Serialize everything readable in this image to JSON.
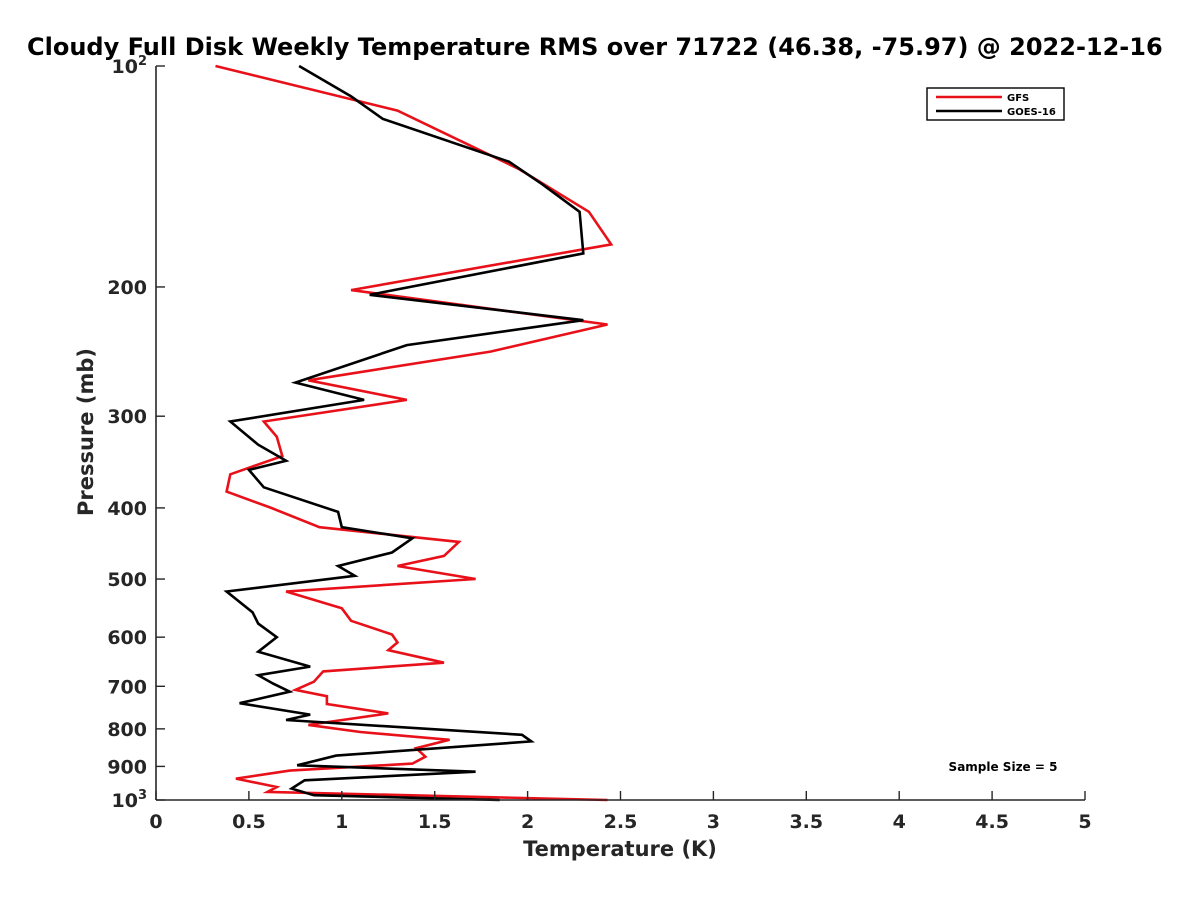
{
  "chart_data": {
    "type": "line",
    "title": "Cloudy Full Disk Weekly Temperature RMS over 71722 (46.38, -75.97) @ 2022-12-16",
    "xlabel": "Temperature (K)",
    "ylabel": "Pressure (mb)",
    "xlim": [
      0,
      5
    ],
    "ylim": [
      100,
      1000
    ],
    "yscale": "log",
    "y_reversed": true,
    "grid": false,
    "legend_position": "top-right",
    "x_ticks": [
      {
        "value": 0,
        "label": "0"
      },
      {
        "value": 0.5,
        "label": "0.5"
      },
      {
        "value": 1,
        "label": "1"
      },
      {
        "value": 1.5,
        "label": "1.5"
      },
      {
        "value": 2,
        "label": "2"
      },
      {
        "value": 2.5,
        "label": "2.5"
      },
      {
        "value": 3,
        "label": "3"
      },
      {
        "value": 3.5,
        "label": "3.5"
      },
      {
        "value": 4,
        "label": "4"
      },
      {
        "value": 4.5,
        "label": "4.5"
      },
      {
        "value": 5,
        "label": "5"
      }
    ],
    "y_ticks": [
      {
        "value": 100,
        "base": "10",
        "exp": "2"
      },
      {
        "value": 200,
        "base": "200",
        "exp": ""
      },
      {
        "value": 300,
        "base": "300",
        "exp": ""
      },
      {
        "value": 400,
        "base": "400",
        "exp": ""
      },
      {
        "value": 500,
        "base": "500",
        "exp": ""
      },
      {
        "value": 600,
        "base": "600",
        "exp": ""
      },
      {
        "value": 700,
        "base": "700",
        "exp": ""
      },
      {
        "value": 800,
        "base": "800",
        "exp": ""
      },
      {
        "value": 900,
        "base": "900",
        "exp": ""
      },
      {
        "value": 1000,
        "base": "10",
        "exp": "3"
      }
    ],
    "series": [
      {
        "name": "GFS",
        "color": "#e8111a",
        "points": [
          [
            0.32,
            100
          ],
          [
            1.3,
            115
          ],
          [
            1.95,
            138
          ],
          [
            2.33,
            158
          ],
          [
            2.45,
            175
          ],
          [
            1.05,
            202
          ],
          [
            2.43,
            225
          ],
          [
            1.8,
            245
          ],
          [
            0.82,
            268
          ],
          [
            1.35,
            285
          ],
          [
            0.58,
            305
          ],
          [
            0.65,
            320
          ],
          [
            0.68,
            340
          ],
          [
            0.4,
            360
          ],
          [
            0.38,
            380
          ],
          [
            0.62,
            400
          ],
          [
            0.88,
            425
          ],
          [
            1.63,
            445
          ],
          [
            1.55,
            465
          ],
          [
            1.3,
            480
          ],
          [
            1.72,
            500
          ],
          [
            0.7,
            520
          ],
          [
            1.0,
            548
          ],
          [
            1.05,
            570
          ],
          [
            1.27,
            595
          ],
          [
            1.3,
            610
          ],
          [
            1.25,
            625
          ],
          [
            1.55,
            650
          ],
          [
            0.9,
            668
          ],
          [
            0.85,
            690
          ],
          [
            0.75,
            708
          ],
          [
            0.92,
            722
          ],
          [
            0.92,
            740
          ],
          [
            1.25,
            762
          ],
          [
            0.82,
            790
          ],
          [
            1.1,
            808
          ],
          [
            1.58,
            828
          ],
          [
            1.4,
            850
          ],
          [
            1.45,
            873
          ],
          [
            1.38,
            892
          ],
          [
            0.72,
            912
          ],
          [
            0.43,
            935
          ],
          [
            0.65,
            960
          ],
          [
            0.6,
            975
          ],
          [
            2.43,
            1000
          ]
        ]
      },
      {
        "name": "GOES-16",
        "color": "#000000",
        "points": [
          [
            0.77,
            100
          ],
          [
            1.05,
            110
          ],
          [
            1.22,
            118
          ],
          [
            1.9,
            135
          ],
          [
            2.08,
            145
          ],
          [
            2.28,
            158
          ],
          [
            2.3,
            180
          ],
          [
            1.15,
            205
          ],
          [
            2.3,
            222
          ],
          [
            1.35,
            240
          ],
          [
            0.75,
            270
          ],
          [
            1.12,
            285
          ],
          [
            0.4,
            305
          ],
          [
            0.55,
            328
          ],
          [
            0.7,
            345
          ],
          [
            0.5,
            355
          ],
          [
            0.58,
            375
          ],
          [
            0.98,
            405
          ],
          [
            1.0,
            425
          ],
          [
            1.38,
            440
          ],
          [
            1.27,
            460
          ],
          [
            0.98,
            480
          ],
          [
            1.07,
            495
          ],
          [
            0.38,
            520
          ],
          [
            0.52,
            555
          ],
          [
            0.55,
            575
          ],
          [
            0.65,
            600
          ],
          [
            0.55,
            628
          ],
          [
            0.83,
            658
          ],
          [
            0.55,
            676
          ],
          [
            0.63,
            694
          ],
          [
            0.72,
            712
          ],
          [
            0.45,
            738
          ],
          [
            0.83,
            765
          ],
          [
            0.7,
            778
          ],
          [
            1.97,
            815
          ],
          [
            2.02,
            832
          ],
          [
            0.97,
            870
          ],
          [
            0.76,
            897
          ],
          [
            1.72,
            915
          ],
          [
            0.8,
            940
          ],
          [
            0.73,
            965
          ],
          [
            0.85,
            985
          ],
          [
            1.85,
            1000
          ]
        ]
      }
    ],
    "annotation": "Sample Size = 5"
  }
}
